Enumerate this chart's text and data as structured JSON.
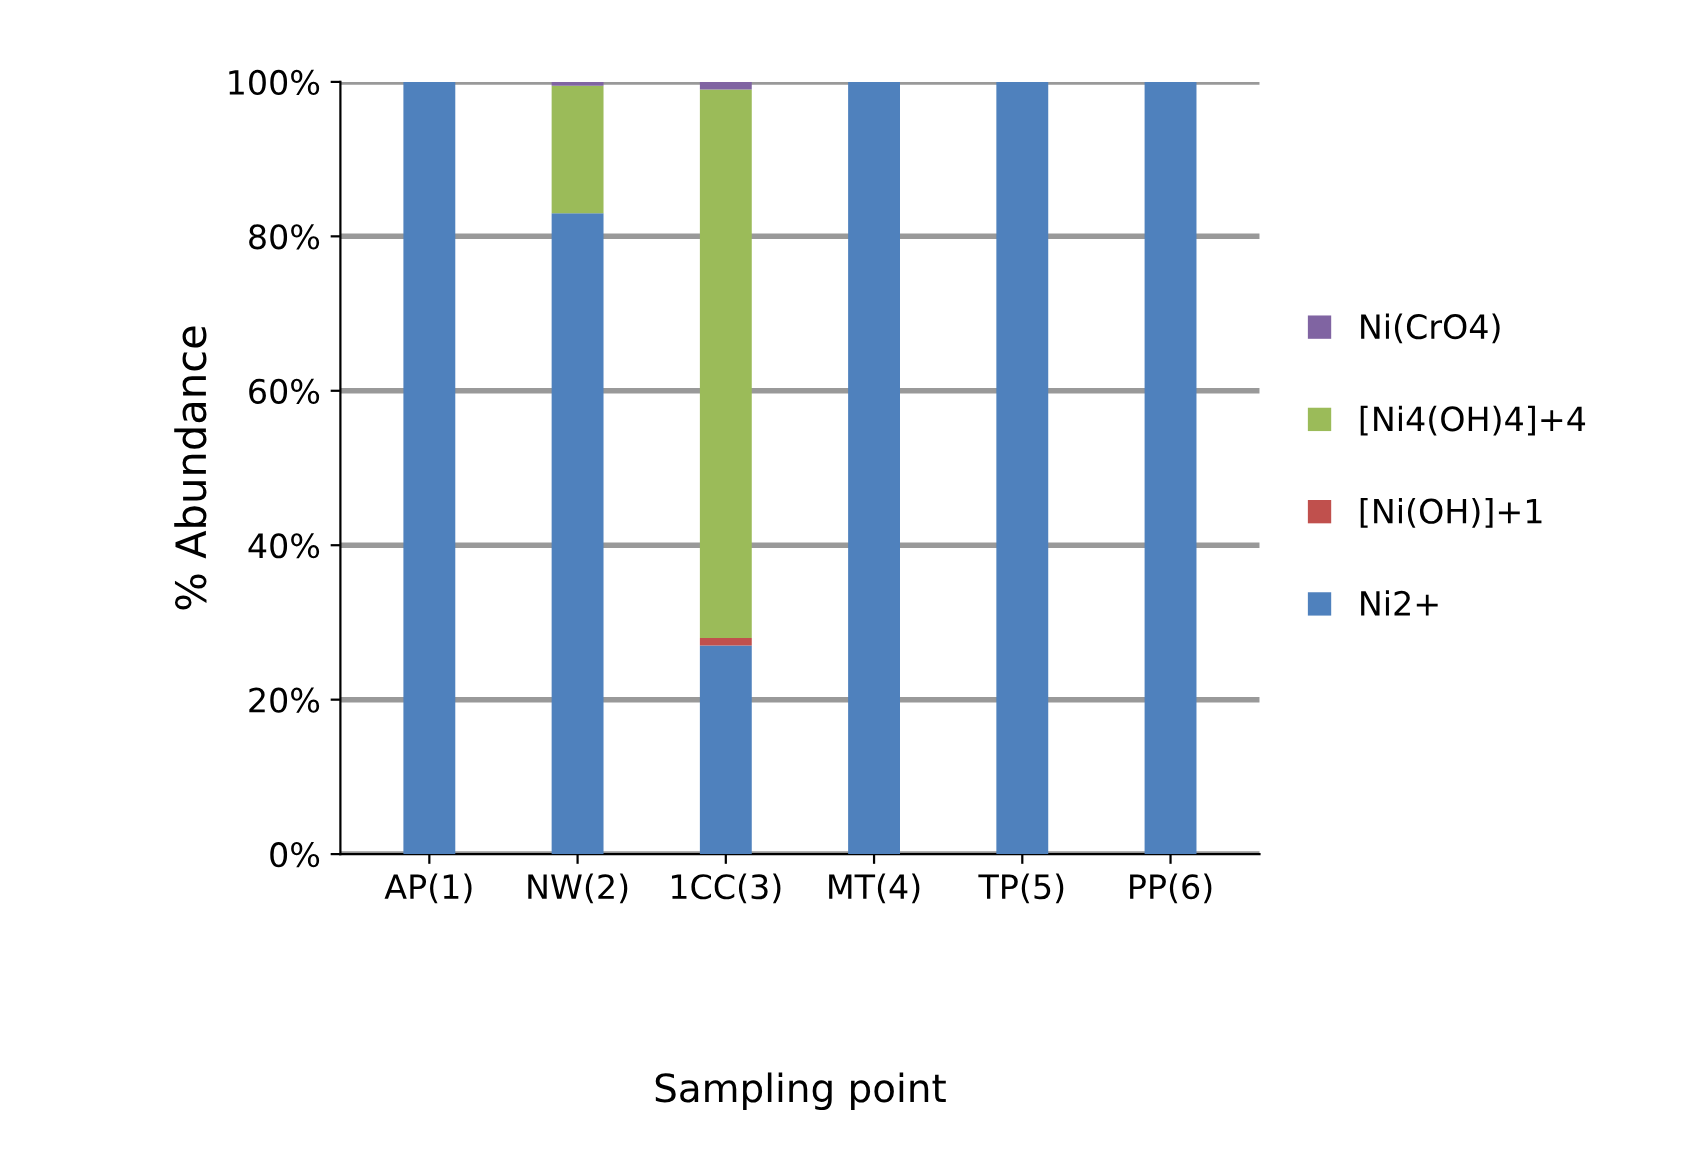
{
  "chart_data": {
    "type": "bar",
    "stacked": true,
    "xlabel": "Sampling point",
    "ylabel": "% Abundance",
    "categories": [
      "AP(1)",
      "NW(2)",
      "1CC(3)",
      "MT(4)",
      "TP(5)",
      "PP(6)"
    ],
    "series": [
      {
        "name": "Ni2+",
        "color": "#4f81bd",
        "values": [
          100,
          83,
          27,
          100,
          100,
          100
        ]
      },
      {
        "name": "[Ni(OH)]+1",
        "color": "#c0504d",
        "values": [
          0,
          0,
          1,
          0,
          0,
          0
        ]
      },
      {
        "name": "[Ni4(OH)4]+4",
        "color": "#9bbb59",
        "values": [
          0,
          16.5,
          71,
          0,
          0,
          0
        ]
      },
      {
        "name": "Ni(CrO4)",
        "color": "#8064a2",
        "values": [
          0,
          0.5,
          1,
          0,
          0,
          0
        ]
      }
    ],
    "ylim": [
      0,
      100
    ],
    "yticks": [
      {
        "value": 0,
        "label": "0%"
      },
      {
        "value": 20,
        "label": "20%"
      },
      {
        "value": 40,
        "label": "40%"
      },
      {
        "value": 60,
        "label": "60%"
      },
      {
        "value": 80,
        "label": "80%"
      },
      {
        "value": 100,
        "label": "100%"
      }
    ],
    "grid": "y",
    "legend": "right"
  }
}
